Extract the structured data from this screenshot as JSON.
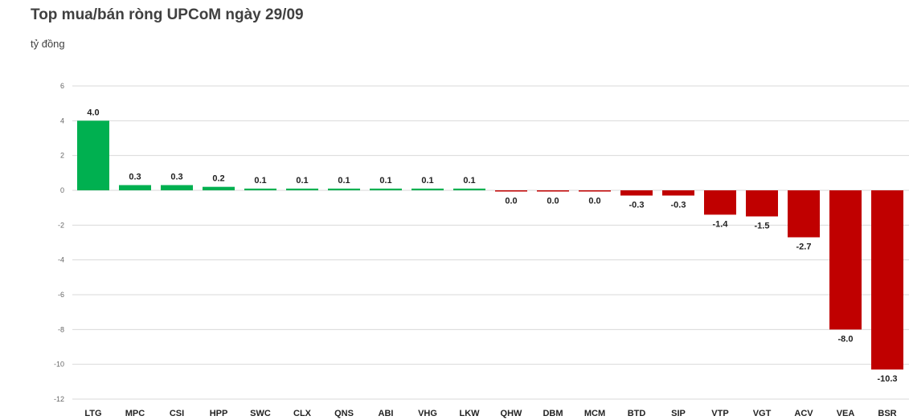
{
  "title": "Top mua/bán ròng UPCoM ngày 29/09",
  "unit_label": "tỷ đồng",
  "colors": {
    "positive": "#00b050",
    "negative": "#c00000",
    "grid": "#d9d9d9"
  },
  "chart_data": {
    "type": "bar",
    "title": "Top mua/bán ròng UPCoM ngày 29/09",
    "ylabel": "tỷ đồng",
    "ylim": [
      -12,
      6
    ],
    "yticks": [
      6,
      4,
      2,
      0,
      -2,
      -4,
      -6,
      -8,
      -10,
      -12
    ],
    "grid": true,
    "categories": [
      "LTG",
      "MPC",
      "CSI",
      "HPP",
      "SWC",
      "CLX",
      "QNS",
      "ABI",
      "VHG",
      "LKW",
      "QHW",
      "DBM",
      "MCM",
      "BTD",
      "SIP",
      "VTP",
      "VGT",
      "ACV",
      "VEA",
      "BSR"
    ],
    "values": [
      4.0,
      0.3,
      0.3,
      0.2,
      0.1,
      0.1,
      0.1,
      0.1,
      0.1,
      0.1,
      -0.05,
      -0.05,
      -0.05,
      -0.3,
      -0.3,
      -1.4,
      -1.5,
      -2.7,
      -8.0,
      -10.3
    ],
    "data_labels": [
      "4.0",
      "0.3",
      "0.3",
      "0.2",
      "0.1",
      "0.1",
      "0.1",
      "0.1",
      "0.1",
      "0.1",
      "0.0",
      "0.0",
      "0.0",
      "-0.3",
      "-0.3",
      "-1.4",
      "-1.5",
      "-2.7",
      "-8.0",
      "-10.3"
    ]
  }
}
